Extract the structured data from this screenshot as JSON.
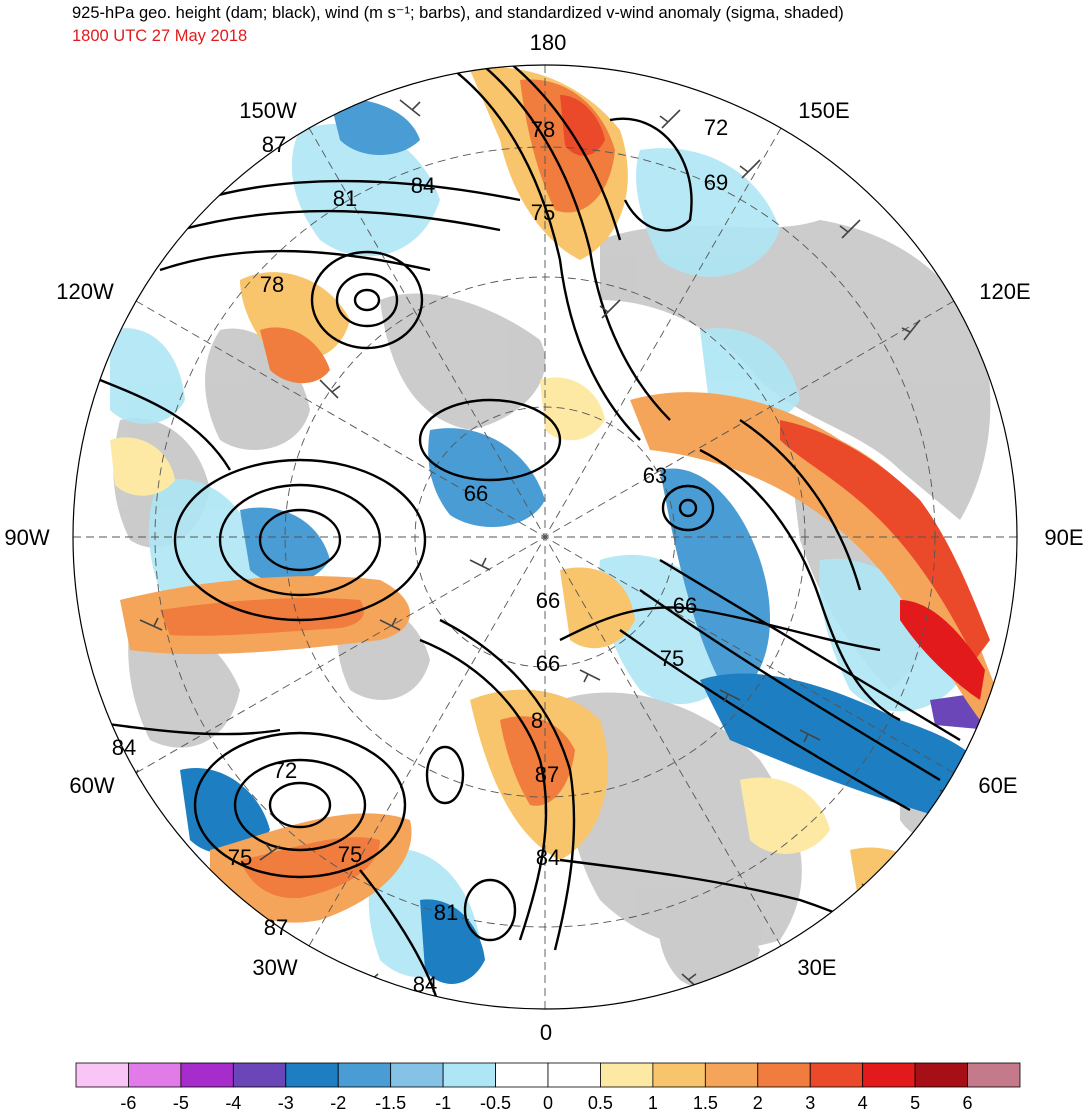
{
  "header": {
    "title": "925-hPa geo. height (dam; black), wind (m s⁻¹; barbs), and standardized v-wind anomaly (sigma, shaded)",
    "valid_time": "1800 UTC 27 May 2018"
  },
  "longitude_labels": [
    {
      "id": "lon-180",
      "text": "180"
    },
    {
      "id": "lon-150w",
      "text": "150W"
    },
    {
      "id": "lon-150e",
      "text": "150E"
    },
    {
      "id": "lon-120w",
      "text": "120W"
    },
    {
      "id": "lon-120e",
      "text": "120E"
    },
    {
      "id": "lon-90w",
      "text": "90W"
    },
    {
      "id": "lon-90e",
      "text": "90E"
    },
    {
      "id": "lon-60w",
      "text": "60W"
    },
    {
      "id": "lon-60e",
      "text": "60E"
    },
    {
      "id": "lon-30w",
      "text": "30W"
    },
    {
      "id": "lon-30e",
      "text": "30E"
    },
    {
      "id": "lon-0",
      "text": "0"
    }
  ],
  "height_contour_labels": [
    "87",
    "81",
    "84",
    "78",
    "72",
    "69",
    "75",
    "78",
    "66",
    "63",
    "66",
    "66",
    "66",
    "75",
    "8",
    "87",
    "84",
    "72",
    "75",
    "75",
    "84",
    "87",
    "81",
    "84"
  ],
  "colorbar": {
    "colors": [
      "#f9c4f6",
      "#e17be8",
      "#a62ccb",
      "#6a46b8",
      "#1d7ec2",
      "#4a9cd4",
      "#85c3e6",
      "#aee6f5",
      "#ffffff",
      "#ffffff",
      "#fde9a4",
      "#f8c56c",
      "#f5a55a",
      "#f07c3e",
      "#ea4a2a",
      "#e31a1c",
      "#a50f15",
      "#c47a8a"
    ],
    "tick_labels": [
      "-6",
      "-5",
      "-4",
      "-3",
      "-2",
      "-1.5",
      "-1",
      "-0.5",
      "0",
      "0.5",
      "1",
      "1.5",
      "2",
      "3",
      "4",
      "5",
      "6"
    ]
  }
}
